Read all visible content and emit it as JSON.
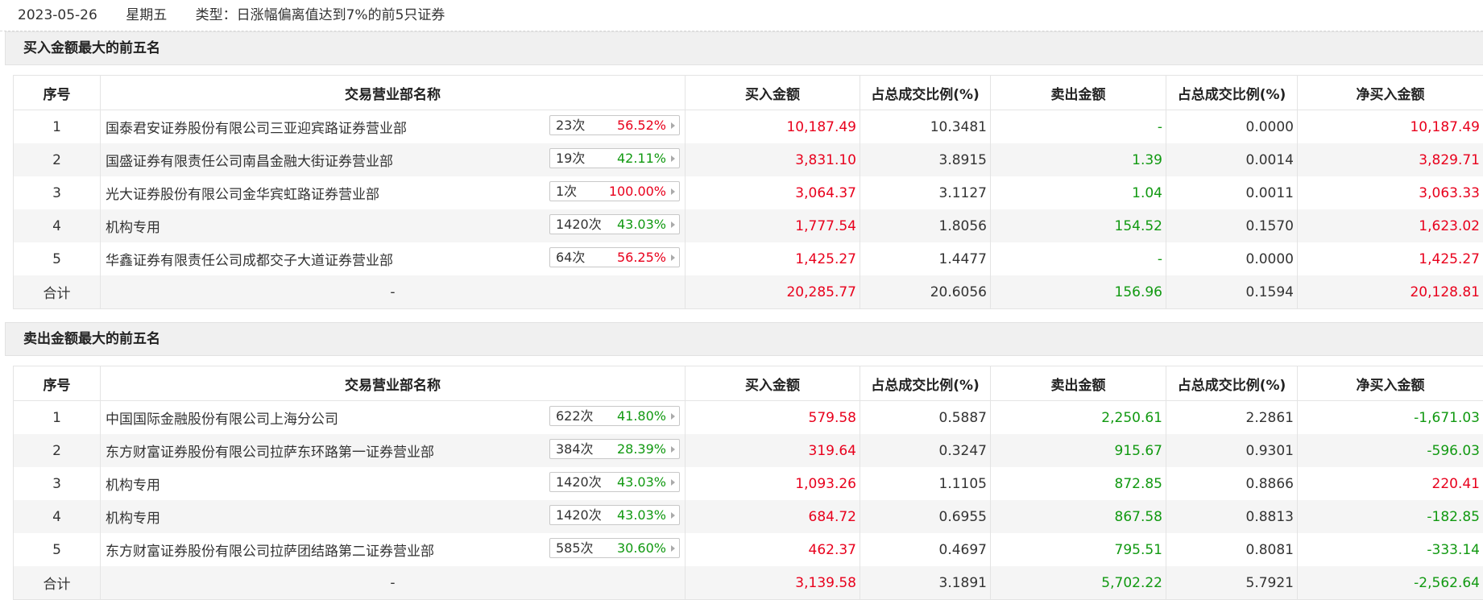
{
  "header": {
    "date": "2023-05-26",
    "weekday": "星期五",
    "type": "类型：日涨幅偏离值达到7%的前5只证券"
  },
  "columns": [
    "序号",
    "交易营业部名称",
    "买入金额",
    "占总成交比例(%)",
    "卖出金额",
    "占总成交比例(%)",
    "净买入金额"
  ],
  "colors": {
    "up": "#e8001c",
    "down": "#119911"
  },
  "buy": {
    "title": "买入金额最大的前五名",
    "rows": [
      {
        "no": "1",
        "name": "国泰君安证券股份有限公司三亚迎宾路证券营业部",
        "count": "23次",
        "pct": "56.52%",
        "pct_color": "red",
        "buy": "10,187.49",
        "buy_ratio": "10.3481",
        "sell": "-",
        "sell_ratio": "0.0000",
        "net": "10,187.49",
        "net_color": "red"
      },
      {
        "no": "2",
        "name": "国盛证券有限责任公司南昌金融大街证券营业部",
        "count": "19次",
        "pct": "42.11%",
        "pct_color": "green",
        "buy": "3,831.10",
        "buy_ratio": "3.8915",
        "sell": "1.39",
        "sell_ratio": "0.0014",
        "net": "3,829.71",
        "net_color": "red"
      },
      {
        "no": "3",
        "name": "光大证券股份有限公司金华宾虹路证券营业部",
        "count": "1次",
        "pct": "100.00%",
        "pct_color": "red",
        "buy": "3,064.37",
        "buy_ratio": "3.1127",
        "sell": "1.04",
        "sell_ratio": "0.0011",
        "net": "3,063.33",
        "net_color": "red"
      },
      {
        "no": "4",
        "name": "机构专用",
        "count": "1420次",
        "pct": "43.03%",
        "pct_color": "green",
        "buy": "1,777.54",
        "buy_ratio": "1.8056",
        "sell": "154.52",
        "sell_ratio": "0.1570",
        "net": "1,623.02",
        "net_color": "red"
      },
      {
        "no": "5",
        "name": "华鑫证券有限责任公司成都交子大道证券营业部",
        "count": "64次",
        "pct": "56.25%",
        "pct_color": "red",
        "buy": "1,425.27",
        "buy_ratio": "1.4477",
        "sell": "-",
        "sell_ratio": "0.0000",
        "net": "1,425.27",
        "net_color": "red"
      }
    ],
    "total": {
      "label": "合计",
      "name": "-",
      "buy": "20,285.77",
      "buy_ratio": "20.6056",
      "sell": "156.96",
      "sell_ratio": "0.1594",
      "net": "20,128.81",
      "net_color": "red"
    }
  },
  "sell": {
    "title": "卖出金额最大的前五名",
    "rows": [
      {
        "no": "1",
        "name": "中国国际金融股份有限公司上海分公司",
        "count": "622次",
        "pct": "41.80%",
        "pct_color": "green",
        "buy": "579.58",
        "buy_ratio": "0.5887",
        "sell": "2,250.61",
        "sell_ratio": "2.2861",
        "net": "-1,671.03",
        "net_color": "green"
      },
      {
        "no": "2",
        "name": "东方财富证券股份有限公司拉萨东环路第一证券营业部",
        "count": "384次",
        "pct": "28.39%",
        "pct_color": "green",
        "buy": "319.64",
        "buy_ratio": "0.3247",
        "sell": "915.67",
        "sell_ratio": "0.9301",
        "net": "-596.03",
        "net_color": "green"
      },
      {
        "no": "3",
        "name": "机构专用",
        "count": "1420次",
        "pct": "43.03%",
        "pct_color": "green",
        "buy": "1,093.26",
        "buy_ratio": "1.1105",
        "sell": "872.85",
        "sell_ratio": "0.8866",
        "net": "220.41",
        "net_color": "red"
      },
      {
        "no": "4",
        "name": "机构专用",
        "count": "1420次",
        "pct": "43.03%",
        "pct_color": "green",
        "buy": "684.72",
        "buy_ratio": "0.6955",
        "sell": "867.58",
        "sell_ratio": "0.8813",
        "net": "-182.85",
        "net_color": "green"
      },
      {
        "no": "5",
        "name": "东方财富证券股份有限公司拉萨团结路第二证券营业部",
        "count": "585次",
        "pct": "30.60%",
        "pct_color": "green",
        "buy": "462.37",
        "buy_ratio": "0.4697",
        "sell": "795.51",
        "sell_ratio": "0.8081",
        "net": "-333.14",
        "net_color": "green"
      }
    ],
    "total": {
      "label": "合计",
      "name": "-",
      "buy": "3,139.58",
      "buy_ratio": "3.1891",
      "sell": "5,702.22",
      "sell_ratio": "5.7921",
      "net": "-2,562.64",
      "net_color": "green"
    }
  }
}
